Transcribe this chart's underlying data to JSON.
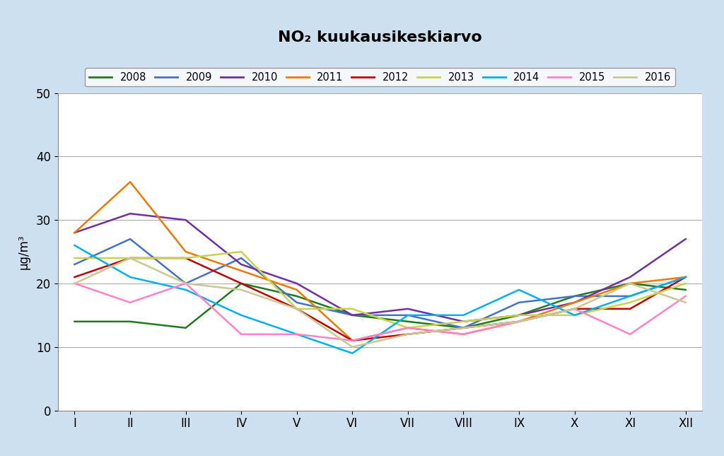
{
  "title": "NO₂ kuukausikeskiarvo",
  "ylabel": "μg/m³",
  "months": [
    "I",
    "II",
    "III",
    "IV",
    "V",
    "VI",
    "VII",
    "VIII",
    "IX",
    "X",
    "XI",
    "XII"
  ],
  "ylim": [
    0,
    50
  ],
  "yticks": [
    0,
    10,
    20,
    30,
    40,
    50
  ],
  "background_color": "#cde0f0",
  "plot_bg_color": "#ffffff",
  "series": [
    {
      "year": "2008",
      "color": "#1e7b1e",
      "values": [
        14,
        14,
        13,
        20,
        18,
        15,
        14,
        13,
        15,
        18,
        20,
        19
      ]
    },
    {
      "year": "2009",
      "color": "#4472c4",
      "values": [
        23,
        27,
        20,
        24,
        17,
        15,
        15,
        13,
        17,
        18,
        18,
        21
      ]
    },
    {
      "year": "2010",
      "color": "#7030a0",
      "values": [
        28,
        31,
        30,
        23,
        20,
        15,
        16,
        14,
        15,
        17,
        21,
        27
      ]
    },
    {
      "year": "2011",
      "color": "#f07800",
      "values": [
        28,
        36,
        25,
        22,
        19,
        11,
        13,
        12,
        14,
        17,
        20,
        21
      ]
    },
    {
      "year": "2012",
      "color": "#c00000",
      "values": [
        21,
        24,
        24,
        20,
        16,
        11,
        12,
        13,
        14,
        16,
        16,
        21
      ]
    },
    {
      "year": "2013",
      "color": "#c8d44a",
      "values": [
        24,
        24,
        24,
        25,
        16,
        16,
        13,
        14,
        15,
        15,
        17,
        20
      ]
    },
    {
      "year": "2014",
      "color": "#00b0f0",
      "values": [
        26,
        21,
        19,
        15,
        12,
        9,
        15,
        15,
        19,
        15,
        18,
        21
      ]
    },
    {
      "year": "2015",
      "color": "#ff82c8",
      "values": [
        20,
        17,
        20,
        12,
        12,
        11,
        13,
        12,
        14,
        16,
        12,
        18
      ]
    },
    {
      "year": "2016",
      "color": "#c8c890",
      "values": [
        20,
        24,
        20,
        19,
        16,
        10,
        12,
        13,
        14,
        16,
        20,
        17
      ]
    }
  ]
}
